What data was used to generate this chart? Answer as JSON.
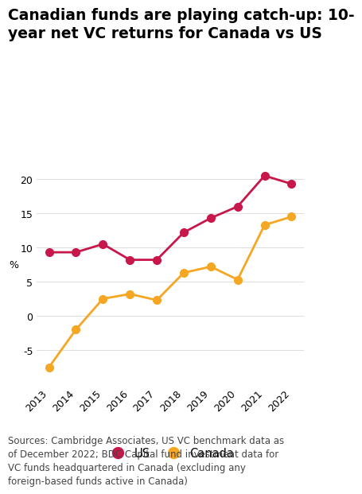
{
  "title_line1": "Canadian funds are playing catch-up: 10-",
  "title_line2": "year net VC returns for Canada vs US",
  "years": [
    2013,
    2014,
    2015,
    2016,
    2017,
    2018,
    2019,
    2020,
    2021,
    2022
  ],
  "us_values": [
    9.3,
    9.3,
    10.5,
    8.2,
    8.2,
    12.2,
    14.3,
    16.0,
    20.5,
    19.3
  ],
  "canada_values": [
    -7.5,
    -2.0,
    2.5,
    3.2,
    2.3,
    6.3,
    7.2,
    5.3,
    13.3,
    14.5
  ],
  "us_color": "#C8174B",
  "canada_color": "#F5A623",
  "ylabel": "%",
  "ylim": [
    -10,
    25
  ],
  "yticks": [
    -5,
    0,
    5,
    10,
    15,
    20
  ],
  "source_text": "Sources: Cambridge Associates, US VC benchmark data as\nof December 2022; BDC Capital fund investment data for\nVC funds headquartered in Canada (excluding any\nforeign-based funds active in Canada)",
  "legend_us": "US",
  "legend_canada": "Canada",
  "background_color": "#FFFFFF",
  "marker_size": 7,
  "linewidth": 2.0,
  "title_fontsize": 13.5,
  "axis_fontsize": 9,
  "source_fontsize": 8.5,
  "legend_fontsize": 10.5
}
